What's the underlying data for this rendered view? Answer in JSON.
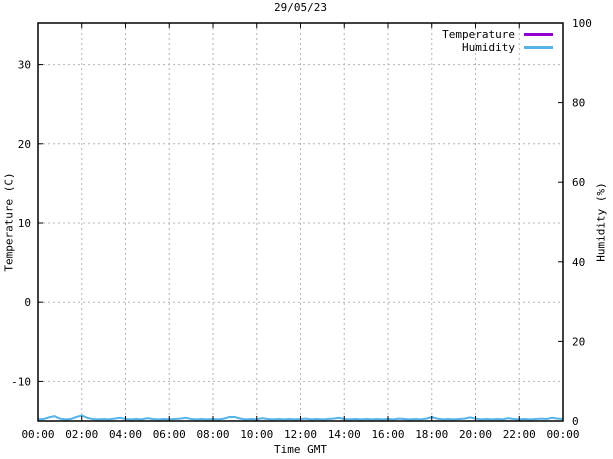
{
  "window": {
    "background": "#ffffff"
  },
  "chart_data": {
    "type": "line",
    "title": "29/05/23",
    "xlabel": "Time GMT",
    "grid": true,
    "legend_position": "top-right-inside",
    "colors": {
      "border": "#000000",
      "grid": "#b4b4b4",
      "tick_text": "#000000",
      "temperature": "#9400d3",
      "humidity": "#56b4e9"
    },
    "x_axis": {
      "label": "Time GMT",
      "range_hours": [
        0,
        24
      ],
      "tick_hours": [
        0,
        2,
        4,
        6,
        8,
        10,
        12,
        14,
        16,
        18,
        20,
        22,
        24
      ],
      "tick_labels": [
        "00:00",
        "02:00",
        "04:00",
        "06:00",
        "08:00",
        "10:00",
        "12:00",
        "14:00",
        "16:00",
        "18:00",
        "20:00",
        "22:00",
        "00:00"
      ]
    },
    "y_left": {
      "label": "Temperature (C)",
      "range": [
        -15,
        35.25
      ],
      "ticks": [
        30,
        20,
        10,
        0,
        -10
      ],
      "tick_labels": [
        "30",
        "20",
        "10",
        "0",
        "-10"
      ]
    },
    "y_right": {
      "label": "Humidity (%)",
      "range": [
        0,
        100
      ],
      "ticks": [
        100,
        80,
        60,
        40,
        20,
        0
      ],
      "tick_labels": [
        "100",
        "80",
        "60",
        "40",
        "20",
        "0"
      ]
    },
    "series": [
      {
        "name": "Temperature",
        "color": "#9400d3",
        "axis": "left",
        "step_hours": 0.25,
        "values": []
      },
      {
        "name": "Humidity",
        "color": "#56b4e9",
        "axis": "right",
        "step_hours": 0.25,
        "values": [
          0.4,
          0.5,
          0.9,
          1.2,
          0.6,
          0.4,
          0.5,
          1.0,
          1.4,
          0.8,
          0.5,
          0.4,
          0.5,
          0.4,
          0.6,
          0.8,
          0.5,
          0.4,
          0.5,
          0.4,
          0.7,
          0.5,
          0.4,
          0.5,
          0.4,
          0.5,
          0.6,
          0.8,
          0.5,
          0.4,
          0.5,
          0.4,
          0.5,
          0.4,
          0.6,
          1.0,
          1.0,
          0.6,
          0.4,
          0.5,
          0.4,
          0.7,
          0.5,
          0.4,
          0.5,
          0.4,
          0.5,
          0.4,
          0.5,
          0.6,
          0.4,
          0.5,
          0.4,
          0.5,
          0.6,
          0.8,
          0.5,
          0.4,
          0.5,
          0.4,
          0.5,
          0.4,
          0.5,
          0.4,
          0.5,
          0.4,
          0.6,
          0.5,
          0.4,
          0.5,
          0.4,
          0.6,
          1.0,
          0.6,
          0.4,
          0.5,
          0.4,
          0.5,
          0.6,
          0.9,
          0.6,
          0.4,
          0.5,
          0.4,
          0.5,
          0.4,
          0.7,
          0.5,
          0.4,
          0.5,
          0.4,
          0.5,
          0.6,
          0.5,
          0.8,
          0.6,
          0.5
        ]
      }
    ]
  }
}
